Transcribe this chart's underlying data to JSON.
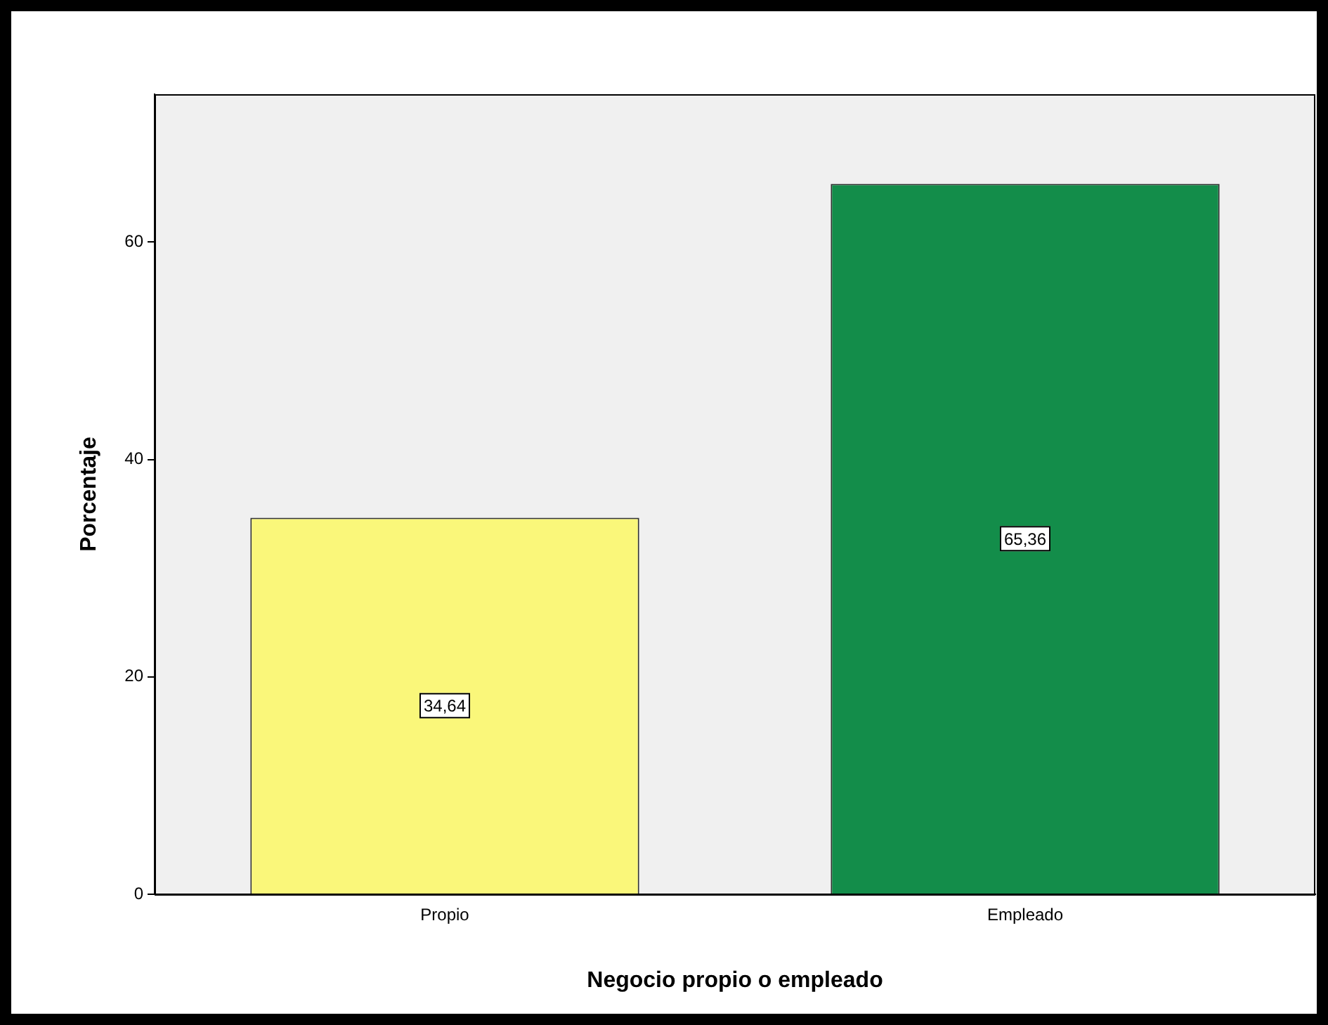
{
  "chart_data": {
    "type": "bar",
    "xlabel": "Negocio propio o empleado",
    "ylabel": "Porcentaje",
    "categories": [
      "Propio",
      "Empleado"
    ],
    "values": [
      34.64,
      65.36
    ],
    "colors": [
      "#faf77a",
      "#138d4a"
    ],
    "value_labels": [
      "34,64",
      "65,36"
    ],
    "ylim": [
      0,
      73.6
    ],
    "yticks": [
      0,
      20,
      40,
      60
    ],
    "grid": false,
    "legend": false
  }
}
